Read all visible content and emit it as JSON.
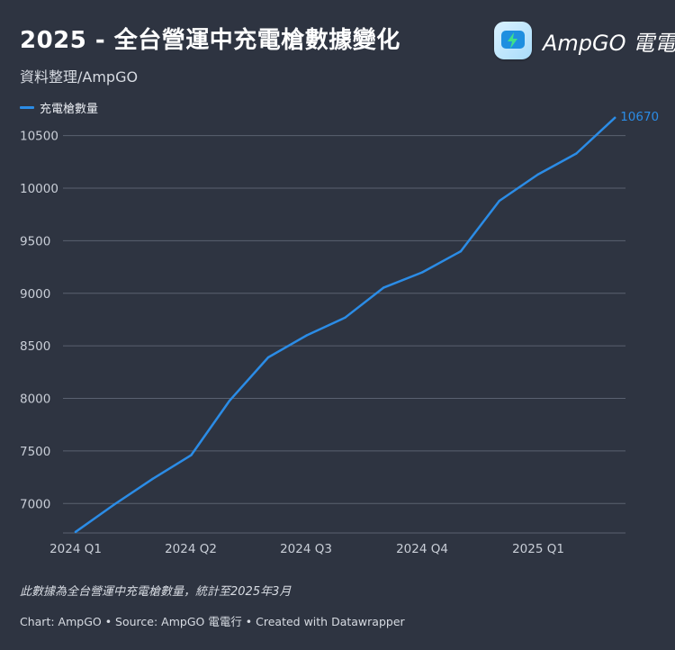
{
  "header": {
    "title": "2025 - 全台營運中充電槍數據變化",
    "subtitle": "資料整理/AmpGO",
    "logo_text": "AmpGO 電電行",
    "logo_icon": "lightning-bolt-icon"
  },
  "footer": {
    "note": "此數據為全台營運中充電槍數量，統計至2025年3月",
    "credit": "Chart: AmpGO • Source: AmpGO 電電行 • Created with Datawrapper"
  },
  "colors": {
    "background": "#2e3441",
    "line": "#2b8ce6",
    "grid": "#5a6170"
  },
  "chart_data": {
    "type": "line",
    "title": "2025 - 全台營運中充電槍數據變化",
    "subtitle": "資料整理/AmpGO",
    "xlabel": "",
    "ylabel": "",
    "x_ticks": [
      "2024 Q1",
      "2024 Q2",
      "2024 Q3",
      "2024 Q4",
      "2025 Q1"
    ],
    "y_ticks": [
      7000,
      7500,
      8000,
      8500,
      9000,
      9500,
      10000,
      10500
    ],
    "ylim": [
      6720,
      10720
    ],
    "grid": true,
    "legend_position": "top-left",
    "end_label": "10670",
    "series": [
      {
        "name": "充電槍數量",
        "color": "#2b8ce6",
        "x": [
          "2024-01",
          "2024-02",
          "2024-03",
          "2024-04",
          "2024-05",
          "2024-06",
          "2024-07",
          "2024-08",
          "2024-09",
          "2024-10",
          "2024-11",
          "2024-12",
          "2025-01",
          "2025-02",
          "2025-03"
        ],
        "values": [
          6730,
          6990,
          7235,
          7460,
          7980,
          8390,
          8600,
          8770,
          9055,
          9200,
          9400,
          9880,
          10130,
          10330,
          10670
        ]
      }
    ]
  }
}
